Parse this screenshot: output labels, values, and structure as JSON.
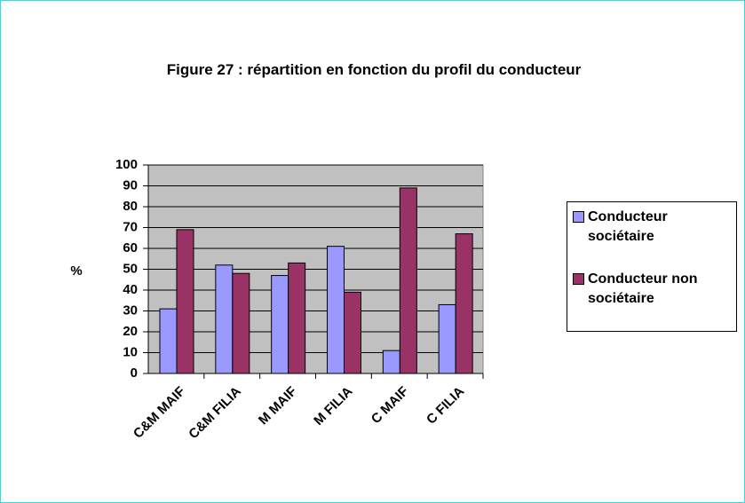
{
  "chart_data": {
    "type": "bar",
    "title": "Figure 27 : répartition en fonction du profil du conducteur",
    "ylabel": "%",
    "categories": [
      "C&M MAIF",
      "C&M FILIA",
      "M MAIF",
      "M FILIA",
      "C MAIF",
      "C FILIA"
    ],
    "series": [
      {
        "name": "Conducteur sociétaire",
        "color": "#9999ff",
        "values": [
          31,
          52,
          47,
          61,
          11,
          33
        ]
      },
      {
        "name": "Conducteur non sociétaire",
        "color": "#993366",
        "values": [
          69,
          48,
          53,
          39,
          89,
          67
        ]
      }
    ],
    "ylim": [
      0,
      100
    ],
    "yticks": [
      0,
      10,
      20,
      30,
      40,
      50,
      60,
      70,
      80,
      90,
      100
    ],
    "grid": true,
    "legend": "right"
  }
}
